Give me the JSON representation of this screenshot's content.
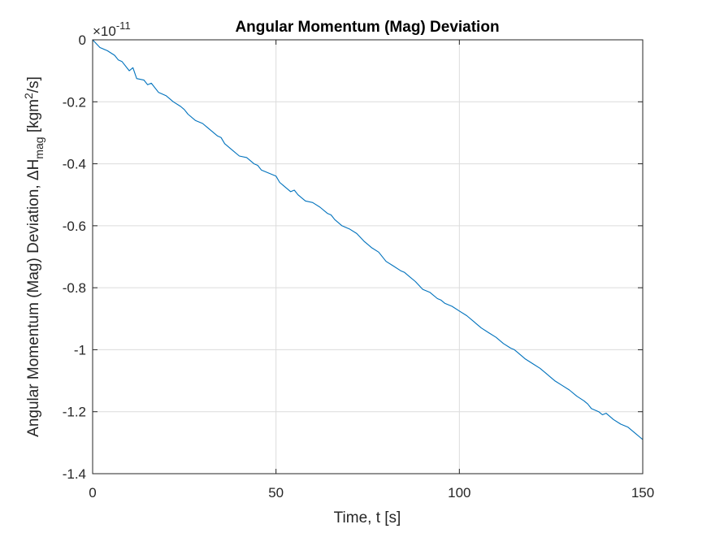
{
  "chart_data": {
    "type": "line",
    "title": "Angular Momentum (Mag) Deviation",
    "xlabel": "Time, t [s]",
    "ylabel": {
      "prefix": "Angular Momentum (Mag) Deviation, ",
      "delta": "Δ",
      "symbol": "H",
      "subscript": "mag",
      "unit_open": " [kgm",
      "unit_sup": "2",
      "unit_close": "/s]"
    },
    "y_exponent": {
      "base": "×10",
      "power": "-11"
    },
    "xlim": [
      0,
      150
    ],
    "ylim": [
      -1.4,
      0
    ],
    "xticks": [
      0,
      50,
      100,
      150
    ],
    "xtick_labels": [
      "0",
      "50",
      "100",
      "150"
    ],
    "yticks": [
      0,
      -0.2,
      -0.4,
      -0.6,
      -0.8,
      -1,
      -1.2,
      -1.4
    ],
    "ytick_labels": [
      "0",
      "-0.2",
      "-0.4",
      "-0.6",
      "-0.8",
      "-1",
      "-1.2",
      "-1.4"
    ],
    "grid": true,
    "line_color": "#0072BD",
    "series": [
      {
        "x": [
          0,
          2,
          4,
          6,
          7,
          8,
          10,
          11,
          12,
          14,
          15,
          16,
          18,
          20,
          22,
          24,
          25,
          26,
          28,
          30,
          32,
          34,
          35,
          36,
          38,
          40,
          42,
          44,
          45,
          46,
          48,
          50,
          51,
          52,
          54,
          55,
          56,
          58,
          60,
          62,
          64,
          65,
          66,
          68,
          70,
          72,
          74,
          75,
          76,
          78,
          80,
          82,
          84,
          85,
          86,
          88,
          90,
          92,
          94,
          95,
          96,
          98,
          100,
          102,
          104,
          105,
          106,
          108,
          110,
          112,
          114,
          115,
          116,
          118,
          120,
          122,
          124,
          125,
          126,
          128,
          130,
          132,
          134,
          135,
          136,
          138,
          139,
          140,
          142,
          144,
          145,
          146,
          148,
          150
        ],
        "y": [
          0,
          -0.025,
          -0.035,
          -0.05,
          -0.065,
          -0.07,
          -0.1,
          -0.09,
          -0.125,
          -0.13,
          -0.145,
          -0.14,
          -0.17,
          -0.18,
          -0.2,
          -0.215,
          -0.225,
          -0.24,
          -0.26,
          -0.27,
          -0.29,
          -0.31,
          -0.315,
          -0.335,
          -0.355,
          -0.375,
          -0.38,
          -0.4,
          -0.405,
          -0.42,
          -0.43,
          -0.44,
          -0.46,
          -0.47,
          -0.49,
          -0.485,
          -0.5,
          -0.52,
          -0.525,
          -0.54,
          -0.56,
          -0.565,
          -0.58,
          -0.6,
          -0.61,
          -0.625,
          -0.65,
          -0.66,
          -0.67,
          -0.685,
          -0.715,
          -0.73,
          -0.745,
          -0.75,
          -0.76,
          -0.78,
          -0.805,
          -0.815,
          -0.835,
          -0.84,
          -0.85,
          -0.86,
          -0.875,
          -0.89,
          -0.91,
          -0.92,
          -0.93,
          -0.945,
          -0.96,
          -0.98,
          -0.995,
          -1.0,
          -1.01,
          -1.03,
          -1.045,
          -1.06,
          -1.08,
          -1.09,
          -1.1,
          -1.115,
          -1.13,
          -1.15,
          -1.165,
          -1.175,
          -1.19,
          -1.2,
          -1.21,
          -1.205,
          -1.225,
          -1.24,
          -1.245,
          -1.25,
          -1.27,
          -1.29
        ]
      }
    ]
  }
}
